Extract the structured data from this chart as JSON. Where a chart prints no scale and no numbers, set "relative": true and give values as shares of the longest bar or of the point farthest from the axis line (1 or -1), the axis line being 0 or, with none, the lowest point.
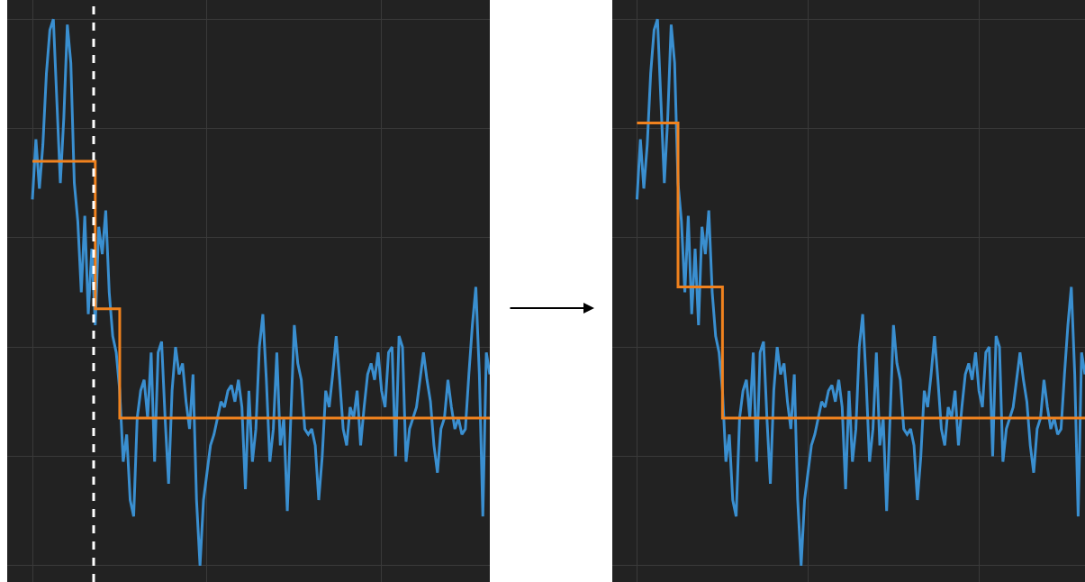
{
  "chart_data": [
    {
      "type": "line",
      "relative": true,
      "grid": true,
      "categories": [
        null,
        null,
        null,
        null,
        null,
        null,
        null,
        null,
        null,
        null,
        null,
        null,
        null,
        null,
        null,
        null,
        null,
        null,
        null,
        null,
        null,
        null,
        null,
        null,
        null,
        null,
        null,
        null,
        null,
        null,
        null,
        null,
        null,
        null,
        null,
        null,
        null,
        null,
        null,
        null,
        null,
        null,
        null,
        null,
        null,
        null,
        null,
        null,
        null,
        null,
        null,
        null,
        null,
        null,
        null,
        null,
        null,
        null,
        null,
        null,
        null,
        null,
        null,
        null,
        null,
        null,
        null,
        null,
        null,
        null,
        null,
        null,
        null,
        null,
        null,
        null,
        null,
        null,
        null,
        null,
        null,
        null,
        null,
        null,
        null,
        null,
        null,
        null,
        null,
        null,
        null,
        null,
        null,
        null,
        null,
        null,
        null,
        null,
        null,
        null,
        null,
        null,
        null,
        null,
        null,
        null,
        null,
        null,
        null,
        null,
        null,
        null,
        null,
        null,
        null,
        null,
        null,
        null,
        null,
        null,
        null,
        null,
        null,
        null,
        null,
        null,
        null,
        null,
        null,
        null,
        null,
        null
      ],
      "series": [
        {
          "color": "#3a8fd0",
          "values": [
            0.67,
            0.78,
            0.69,
            0.77,
            0.9,
            0.98,
            1.0,
            0.85,
            0.7,
            0.82,
            0.99,
            0.92,
            0.7,
            0.63,
            0.5,
            0.64,
            0.46,
            0.58,
            0.44,
            0.62,
            0.57,
            0.65,
            0.5,
            0.42,
            0.39,
            0.32,
            0.19,
            0.24,
            0.12,
            0.09,
            0.27,
            0.32,
            0.34,
            0.27,
            0.39,
            0.19,
            0.39,
            0.41,
            0.27,
            0.15,
            0.32,
            0.4,
            0.35,
            0.37,
            0.3,
            0.25,
            0.35,
            0.12,
            0.0,
            0.12,
            0.17,
            0.22,
            0.24,
            0.27,
            0.3,
            0.29,
            0.32,
            0.33,
            0.3,
            0.34,
            0.29,
            0.14,
            0.32,
            0.19,
            0.25,
            0.4,
            0.46,
            0.34,
            0.19,
            0.25,
            0.39,
            0.22,
            0.27,
            0.1,
            0.27,
            0.44,
            0.37,
            0.34,
            0.25,
            0.24,
            0.25,
            0.22,
            0.12,
            0.2,
            0.32,
            0.29,
            0.35,
            0.42,
            0.34,
            0.25,
            0.22,
            0.29,
            0.27,
            0.32,
            0.22,
            0.29,
            0.35,
            0.37,
            0.34,
            0.39,
            0.32,
            0.29,
            0.39,
            0.4,
            0.2,
            0.42,
            0.4,
            0.19,
            0.25,
            0.27,
            0.29,
            0.34,
            0.39,
            0.34,
            0.3,
            0.22,
            0.17,
            0.25,
            0.27,
            0.34,
            0.29,
            0.25,
            0.27,
            0.24,
            0.25,
            0.35,
            0.44,
            0.51,
            0.35,
            0.09,
            0.39,
            0.35
          ]
        },
        {
          "type": "step",
          "color": "#f0821e",
          "values": [
            0.74,
            0.74,
            0.74,
            0.74,
            0.74,
            0.74,
            0.74,
            0.74,
            0.74,
            0.74,
            0.74,
            0.74,
            0.74,
            0.74,
            0.74,
            0.74,
            0.74,
            0.74,
            0.47,
            0.47,
            0.47,
            0.47,
            0.47,
            0.47,
            0.47,
            0.27,
            0.27,
            0.27,
            0.27,
            0.27,
            0.27,
            0.27,
            0.27,
            0.27,
            0.27,
            0.27,
            0.27,
            0.27,
            0.27,
            0.27,
            0.27,
            0.27,
            0.27,
            0.27,
            0.27,
            0.27,
            0.27,
            0.27,
            0.27,
            0.27,
            0.27,
            0.27,
            0.27,
            0.27,
            0.27,
            0.27,
            0.27,
            0.27,
            0.27,
            0.27,
            0.27,
            0.27,
            0.27,
            0.27,
            0.27,
            0.27,
            0.27,
            0.27,
            0.27,
            0.27,
            0.27,
            0.27,
            0.27,
            0.27,
            0.27,
            0.27,
            0.27,
            0.27,
            0.27,
            0.27,
            0.27,
            0.27,
            0.27,
            0.27,
            0.27,
            0.27,
            0.27,
            0.27,
            0.27,
            0.27,
            0.27,
            0.27,
            0.27,
            0.27,
            0.27,
            0.27,
            0.27,
            0.27,
            0.27,
            0.27,
            0.27,
            0.27,
            0.27,
            0.27,
            0.27,
            0.27,
            0.27,
            0.27,
            0.27,
            0.27,
            0.27,
            0.27,
            0.27,
            0.27,
            0.27,
            0.27,
            0.27,
            0.27,
            0.27,
            0.27,
            0.27,
            0.27,
            0.27,
            0.27,
            0.27,
            0.27,
            0.27,
            0.27,
            0.27,
            0.27,
            0.27,
            0.27
          ]
        }
      ]
    },
    {
      "type": "line",
      "relative": true,
      "grid": true,
      "categories": [
        null,
        null,
        null,
        null,
        null,
        null,
        null,
        null,
        null,
        null,
        null,
        null,
        null,
        null,
        null,
        null,
        null,
        null,
        null,
        null,
        null,
        null,
        null,
        null,
        null,
        null,
        null,
        null,
        null,
        null,
        null,
        null,
        null,
        null,
        null,
        null,
        null,
        null,
        null,
        null,
        null,
        null,
        null,
        null,
        null,
        null,
        null,
        null,
        null,
        null,
        null,
        null,
        null,
        null,
        null,
        null,
        null,
        null,
        null,
        null,
        null,
        null,
        null,
        null,
        null,
        null,
        null,
        null,
        null,
        null,
        null,
        null,
        null,
        null,
        null,
        null,
        null,
        null,
        null,
        null,
        null,
        null,
        null,
        null,
        null,
        null,
        null,
        null,
        null,
        null,
        null,
        null,
        null,
        null,
        null,
        null,
        null,
        null,
        null,
        null,
        null,
        null,
        null,
        null,
        null,
        null,
        null,
        null,
        null,
        null,
        null,
        null,
        null,
        null,
        null,
        null,
        null,
        null,
        null,
        null,
        null,
        null,
        null,
        null,
        null,
        null,
        null,
        null,
        null,
        null,
        null,
        null
      ],
      "series": [
        {
          "color": "#3a8fd0",
          "values": [
            0.67,
            0.78,
            0.69,
            0.77,
            0.9,
            0.98,
            1.0,
            0.85,
            0.7,
            0.82,
            0.99,
            0.92,
            0.7,
            0.63,
            0.5,
            0.64,
            0.46,
            0.58,
            0.44,
            0.62,
            0.57,
            0.65,
            0.5,
            0.42,
            0.39,
            0.32,
            0.19,
            0.24,
            0.12,
            0.09,
            0.27,
            0.32,
            0.34,
            0.27,
            0.39,
            0.19,
            0.39,
            0.41,
            0.27,
            0.15,
            0.32,
            0.4,
            0.35,
            0.37,
            0.3,
            0.25,
            0.35,
            0.12,
            0.0,
            0.12,
            0.17,
            0.22,
            0.24,
            0.27,
            0.3,
            0.29,
            0.32,
            0.33,
            0.3,
            0.34,
            0.29,
            0.14,
            0.32,
            0.19,
            0.25,
            0.4,
            0.46,
            0.34,
            0.19,
            0.25,
            0.39,
            0.22,
            0.27,
            0.1,
            0.27,
            0.44,
            0.37,
            0.34,
            0.25,
            0.24,
            0.25,
            0.22,
            0.12,
            0.2,
            0.32,
            0.29,
            0.35,
            0.42,
            0.34,
            0.25,
            0.22,
            0.29,
            0.27,
            0.32,
            0.22,
            0.29,
            0.35,
            0.37,
            0.34,
            0.39,
            0.32,
            0.29,
            0.39,
            0.4,
            0.2,
            0.42,
            0.4,
            0.19,
            0.25,
            0.27,
            0.29,
            0.34,
            0.39,
            0.34,
            0.3,
            0.22,
            0.17,
            0.25,
            0.27,
            0.34,
            0.29,
            0.25,
            0.27,
            0.24,
            0.25,
            0.35,
            0.44,
            0.51,
            0.35,
            0.09,
            0.39,
            0.35
          ]
        },
        {
          "type": "step",
          "color": "#f0821e",
          "values": [
            0.81,
            0.81,
            0.81,
            0.81,
            0.81,
            0.81,
            0.81,
            0.81,
            0.81,
            0.81,
            0.81,
            0.81,
            0.51,
            0.51,
            0.51,
            0.51,
            0.51,
            0.51,
            0.51,
            0.51,
            0.51,
            0.51,
            0.51,
            0.51,
            0.51,
            0.27,
            0.27,
            0.27,
            0.27,
            0.27,
            0.27,
            0.27,
            0.27,
            0.27,
            0.27,
            0.27,
            0.27,
            0.27,
            0.27,
            0.27,
            0.27,
            0.27,
            0.27,
            0.27,
            0.27,
            0.27,
            0.27,
            0.27,
            0.27,
            0.27,
            0.27,
            0.27,
            0.27,
            0.27,
            0.27,
            0.27,
            0.27,
            0.27,
            0.27,
            0.27,
            0.27,
            0.27,
            0.27,
            0.27,
            0.27,
            0.27,
            0.27,
            0.27,
            0.27,
            0.27,
            0.27,
            0.27,
            0.27,
            0.27,
            0.27,
            0.27,
            0.27,
            0.27,
            0.27,
            0.27,
            0.27,
            0.27,
            0.27,
            0.27,
            0.27,
            0.27,
            0.27,
            0.27,
            0.27,
            0.27,
            0.27,
            0.27,
            0.27,
            0.27,
            0.27,
            0.27,
            0.27,
            0.27,
            0.27,
            0.27,
            0.27,
            0.27,
            0.27,
            0.27,
            0.27,
            0.27,
            0.27,
            0.27,
            0.27,
            0.27,
            0.27,
            0.27,
            0.27,
            0.27,
            0.27,
            0.27,
            0.27,
            0.27,
            0.27,
            0.27,
            0.27,
            0.27,
            0.27,
            0.27,
            0.27,
            0.27,
            0.27,
            0.27,
            0.27,
            0.27,
            0.27,
            0.27
          ]
        }
      ]
    }
  ]
}
